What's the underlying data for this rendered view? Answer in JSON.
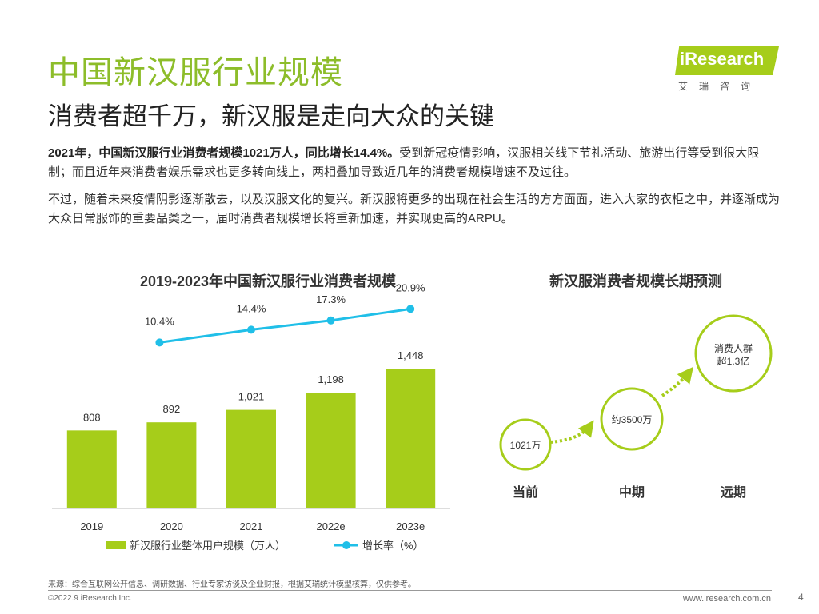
{
  "header": {
    "title": "中国新汉服行业规模",
    "subtitle": "消费者超千万，新汉服是走向大众的关键"
  },
  "logo": {
    "brand": "iResearch",
    "sub": "艾瑞咨询"
  },
  "body": {
    "p1_strong": "2021年，中国新汉服行业消费者规模1021万人，同比增长14.4%。",
    "p1_rest": "受到新冠疫情影响，汉服相关线下节礼活动、旅游出行等受到很大限制；而且近年来消费者娱乐需求也更多转向线上，两相叠加导致近几年的消费者规模增速不及过往。",
    "p2": "不过，随着未来疫情阴影逐渐散去，以及汉服文化的复兴。新汉服将更多的出现在社会生活的方方面面，进入大家的衣柜之中，并逐渐成为大众日常服饰的重要品类之一，届时消费者规模增长将重新加速，并实现更高的ARPU。"
  },
  "chart_data": [
    {
      "type": "bar",
      "title": "2019-2023年中国新汉服行业消费者规模",
      "categories": [
        "2019",
        "2020",
        "2021",
        "2022e",
        "2023e"
      ],
      "series": [
        {
          "name": "新汉服行业整体用户规模（万人）",
          "type": "bar",
          "color": "#a6cd1a",
          "values": [
            808,
            892,
            1021,
            1198,
            1448
          ],
          "labels": [
            "808",
            "892",
            "1,021",
            "1,198",
            "1,448"
          ]
        },
        {
          "name": "增长率（%）",
          "type": "line",
          "color": "#20bfe8",
          "values": [
            10.4,
            14.4,
            17.3,
            20.9
          ],
          "x": [
            "2020",
            "2021",
            "2022e",
            "2023e"
          ],
          "labels": [
            "10.4%",
            "14.4%",
            "17.3%",
            "20.9%"
          ]
        }
      ],
      "ylim": [
        0,
        2000
      ],
      "grid": false,
      "legend": "bottom"
    },
    {
      "type": "diagram",
      "title": "新汉服消费者规模长期预测",
      "stages": [
        {
          "label": "当前",
          "value": "1021万"
        },
        {
          "label": "中期",
          "value": "约3500万"
        },
        {
          "label": "远期",
          "value_lines": [
            "消费人群",
            "超1.3亿"
          ]
        }
      ]
    }
  ],
  "footer": {
    "source": "来源：综合互联网公开信息、调研数据、行业专家访谈及企业财报，根据艾瑞统计模型核算，仅供参考。",
    "copyright": "©2022.9 iResearch Inc.",
    "url": "www.iresearch.com.cn",
    "page": "4"
  },
  "colors": {
    "accent": "#8dbd2a",
    "bar": "#a6cd1a",
    "line": "#20bfe8"
  }
}
